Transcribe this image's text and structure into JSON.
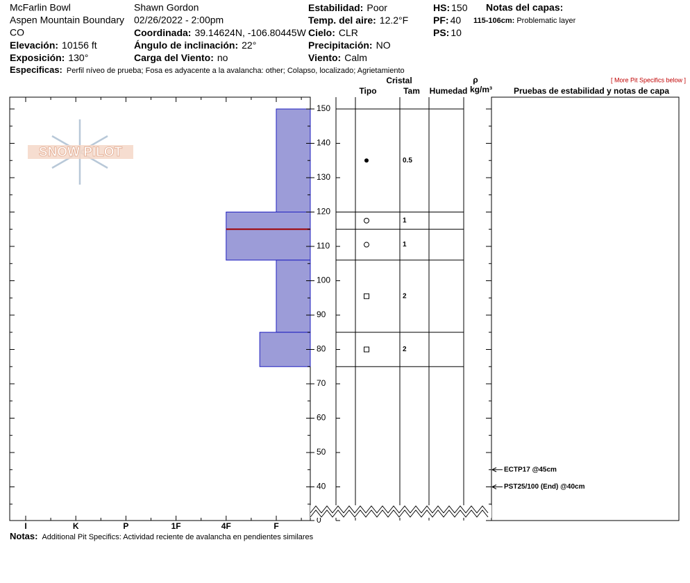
{
  "site": {
    "name": "McFarlin Bowl",
    "area": "Aspen Mountain Boundary",
    "state": "CO"
  },
  "observer": "Shawn Gordon",
  "datetime": "02/26/2022 - 2:00pm",
  "fields": [
    {
      "label": "Elevación:",
      "value": "10156 ft"
    },
    {
      "label": "Exposición:",
      "value": "130°"
    },
    {
      "label": "Coordinada:",
      "value": "39.14624N, -106.80445W"
    },
    {
      "label": "Ángulo de inclinación:",
      "value": "22°"
    },
    {
      "label": "Carga del Viento:",
      "value": "no"
    },
    {
      "label": "Estabilidad:",
      "value": "Poor"
    },
    {
      "label": "Temp. del aire:",
      "value": "12.2°F"
    },
    {
      "label": "Cielo:",
      "value": "CLR"
    },
    {
      "label": "Precipitación:",
      "value": "NO"
    },
    {
      "label": "Viento:",
      "value": "Calm"
    },
    {
      "label": "HS:",
      "value": "150"
    },
    {
      "label": "PF:",
      "value": "40"
    },
    {
      "label": "PS:",
      "value": "10"
    }
  ],
  "layer_notes": {
    "title": "Notas del capas:",
    "items": [
      {
        "range": "115-106cm:",
        "text": "Problematic layer"
      }
    ]
  },
  "specifics": {
    "label": "Especificas:",
    "text": "Perfil níveo de prueba; Fosa es adyacente a la avalancha: other; Colapso, localizado; Agrietamiento"
  },
  "more_link": "[ More Pit Specifics below ]",
  "logo": "SNOW PILOT",
  "columns": {
    "crystal": "Cristal",
    "type": "Tipo",
    "size": "Tam",
    "moisture": "Humedad",
    "rho": "ρ",
    "density_unit": "kg/m³",
    "tests": "Pruebas de estabilidad y notas de capa"
  },
  "depth_ticks": [
    150,
    140,
    130,
    120,
    110,
    100,
    90,
    80,
    70,
    60,
    50,
    40,
    0
  ],
  "hardness_scale": [
    "I",
    "K",
    "P",
    "1F",
    "4F",
    "F"
  ],
  "layers": [
    {
      "top": 150,
      "bottom": 120,
      "hardness": 5
    },
    {
      "top": 120,
      "bottom": 106,
      "hardness": 4
    },
    {
      "top": 106,
      "bottom": 85,
      "hardness": 5
    },
    {
      "top": 85,
      "bottom": 75,
      "hardness": 4.67
    }
  ],
  "problem_depth": 115,
  "crystals": [
    {
      "top": 150,
      "bottom": 120,
      "form": "PPgp",
      "size": "0.5"
    },
    {
      "top": 120,
      "bottom": 115,
      "form": "RG",
      "size": "1"
    },
    {
      "top": 115,
      "bottom": 106,
      "form": "RG",
      "size": "1"
    },
    {
      "top": 106,
      "bottom": 85,
      "form": "FC",
      "size": "2"
    },
    {
      "top": 85,
      "bottom": 75,
      "form": "FC",
      "size": "2"
    }
  ],
  "tests": [
    {
      "text": "ECTP17 @45cm",
      "depth": 45
    },
    {
      "text": "PST25/100 (End) @40cm",
      "depth": 40
    }
  ],
  "notes": {
    "label": "Notas:",
    "text": "Additional Pit Specifics: Actividad reciente de avalancha en pendientes similares"
  }
}
